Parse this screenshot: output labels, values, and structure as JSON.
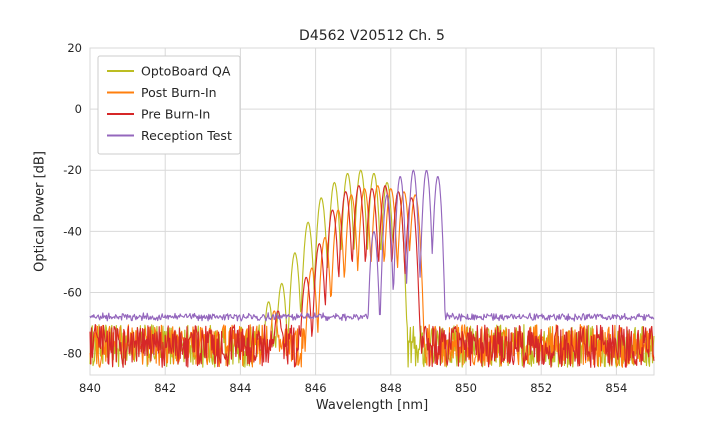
{
  "chart_data": {
    "type": "line",
    "title": "D4562 V20512 Ch. 5",
    "xlabel": "Wavelength [nm]",
    "ylabel": "Optical Power [dB]",
    "xlim": [
      840,
      855
    ],
    "ylim": [
      -87,
      20
    ],
    "xticks": [
      840,
      842,
      844,
      846,
      848,
      850,
      852,
      854
    ],
    "yticks": [
      20,
      0,
      -20,
      -40,
      -60,
      -80
    ],
    "grid": true,
    "grid_color": "#d9d9d9",
    "legend_position": "upper-left",
    "tick_color": "#262626",
    "series": [
      {
        "name": "OptoBoard QA",
        "color": "#bcbd22",
        "mode_width": 0.16,
        "mode_depth": 22,
        "modes": [
          [
            844.75,
            -63
          ],
          [
            845.1,
            -57
          ],
          [
            845.45,
            -47
          ],
          [
            845.8,
            -37
          ],
          [
            846.15,
            -29
          ],
          [
            846.5,
            -24
          ],
          [
            846.85,
            -21
          ],
          [
            847.2,
            -20
          ],
          [
            847.55,
            -21
          ],
          [
            847.9,
            -24
          ],
          [
            848.2,
            -27
          ]
        ],
        "noise_segments": [
          {
            "range": [
              840,
              845.7
            ],
            "base": -77.5,
            "amp": 7,
            "smooth": false
          },
          {
            "range": [
              848.3,
              855
            ],
            "base": -77.5,
            "amp": 7,
            "smooth": false
          }
        ]
      },
      {
        "name": "Post Burn-In",
        "color": "#ff7f0e",
        "mode_width": 0.16,
        "mode_depth": 22,
        "modes": [
          [
            844.9,
            -66
          ],
          [
            845.9,
            -52
          ],
          [
            846.25,
            -42
          ],
          [
            846.6,
            -33
          ],
          [
            846.95,
            -28
          ],
          [
            847.3,
            -26
          ],
          [
            847.65,
            -25
          ],
          [
            848.0,
            -26
          ],
          [
            848.35,
            -27
          ],
          [
            848.65,
            -28
          ]
        ],
        "noise_segments": [
          {
            "range": [
              840,
              846.0
            ],
            "base": -77.5,
            "amp": 7,
            "smooth": false
          },
          {
            "range": [
              848.75,
              855
            ],
            "base": -77.5,
            "amp": 7,
            "smooth": false
          }
        ]
      },
      {
        "name": "Pre Burn-In",
        "color": "#d62728",
        "mode_width": 0.16,
        "mode_depth": 22,
        "modes": [
          [
            845.0,
            -66
          ],
          [
            845.75,
            -55
          ],
          [
            846.1,
            -44
          ],
          [
            846.45,
            -33
          ],
          [
            846.8,
            -27
          ],
          [
            847.15,
            -25
          ],
          [
            847.5,
            -26
          ],
          [
            847.85,
            -25
          ],
          [
            848.2,
            -27
          ],
          [
            848.55,
            -29
          ]
        ],
        "noise_segments": [
          {
            "range": [
              840,
              845.9
            ],
            "base": -77.5,
            "amp": 7,
            "smooth": false
          },
          {
            "range": [
              848.65,
              855
            ],
            "base": -77.5,
            "amp": 7,
            "smooth": false
          }
        ]
      },
      {
        "name": "Reception Test",
        "color": "#9467bd",
        "mode_width": 0.17,
        "mode_depth": 35,
        "modes": [
          [
            847.55,
            -40
          ],
          [
            847.9,
            -28
          ],
          [
            848.25,
            -22
          ],
          [
            848.6,
            -20
          ],
          [
            848.95,
            -20
          ],
          [
            849.25,
            -22
          ]
        ],
        "noise_segments": [
          {
            "range": [
              840,
              847.5
            ],
            "base": -68,
            "amp": 1.4,
            "smooth": true
          },
          {
            "range": [
              849.4,
              855
            ],
            "base": -68,
            "amp": 1.4,
            "smooth": true
          }
        ]
      }
    ]
  }
}
